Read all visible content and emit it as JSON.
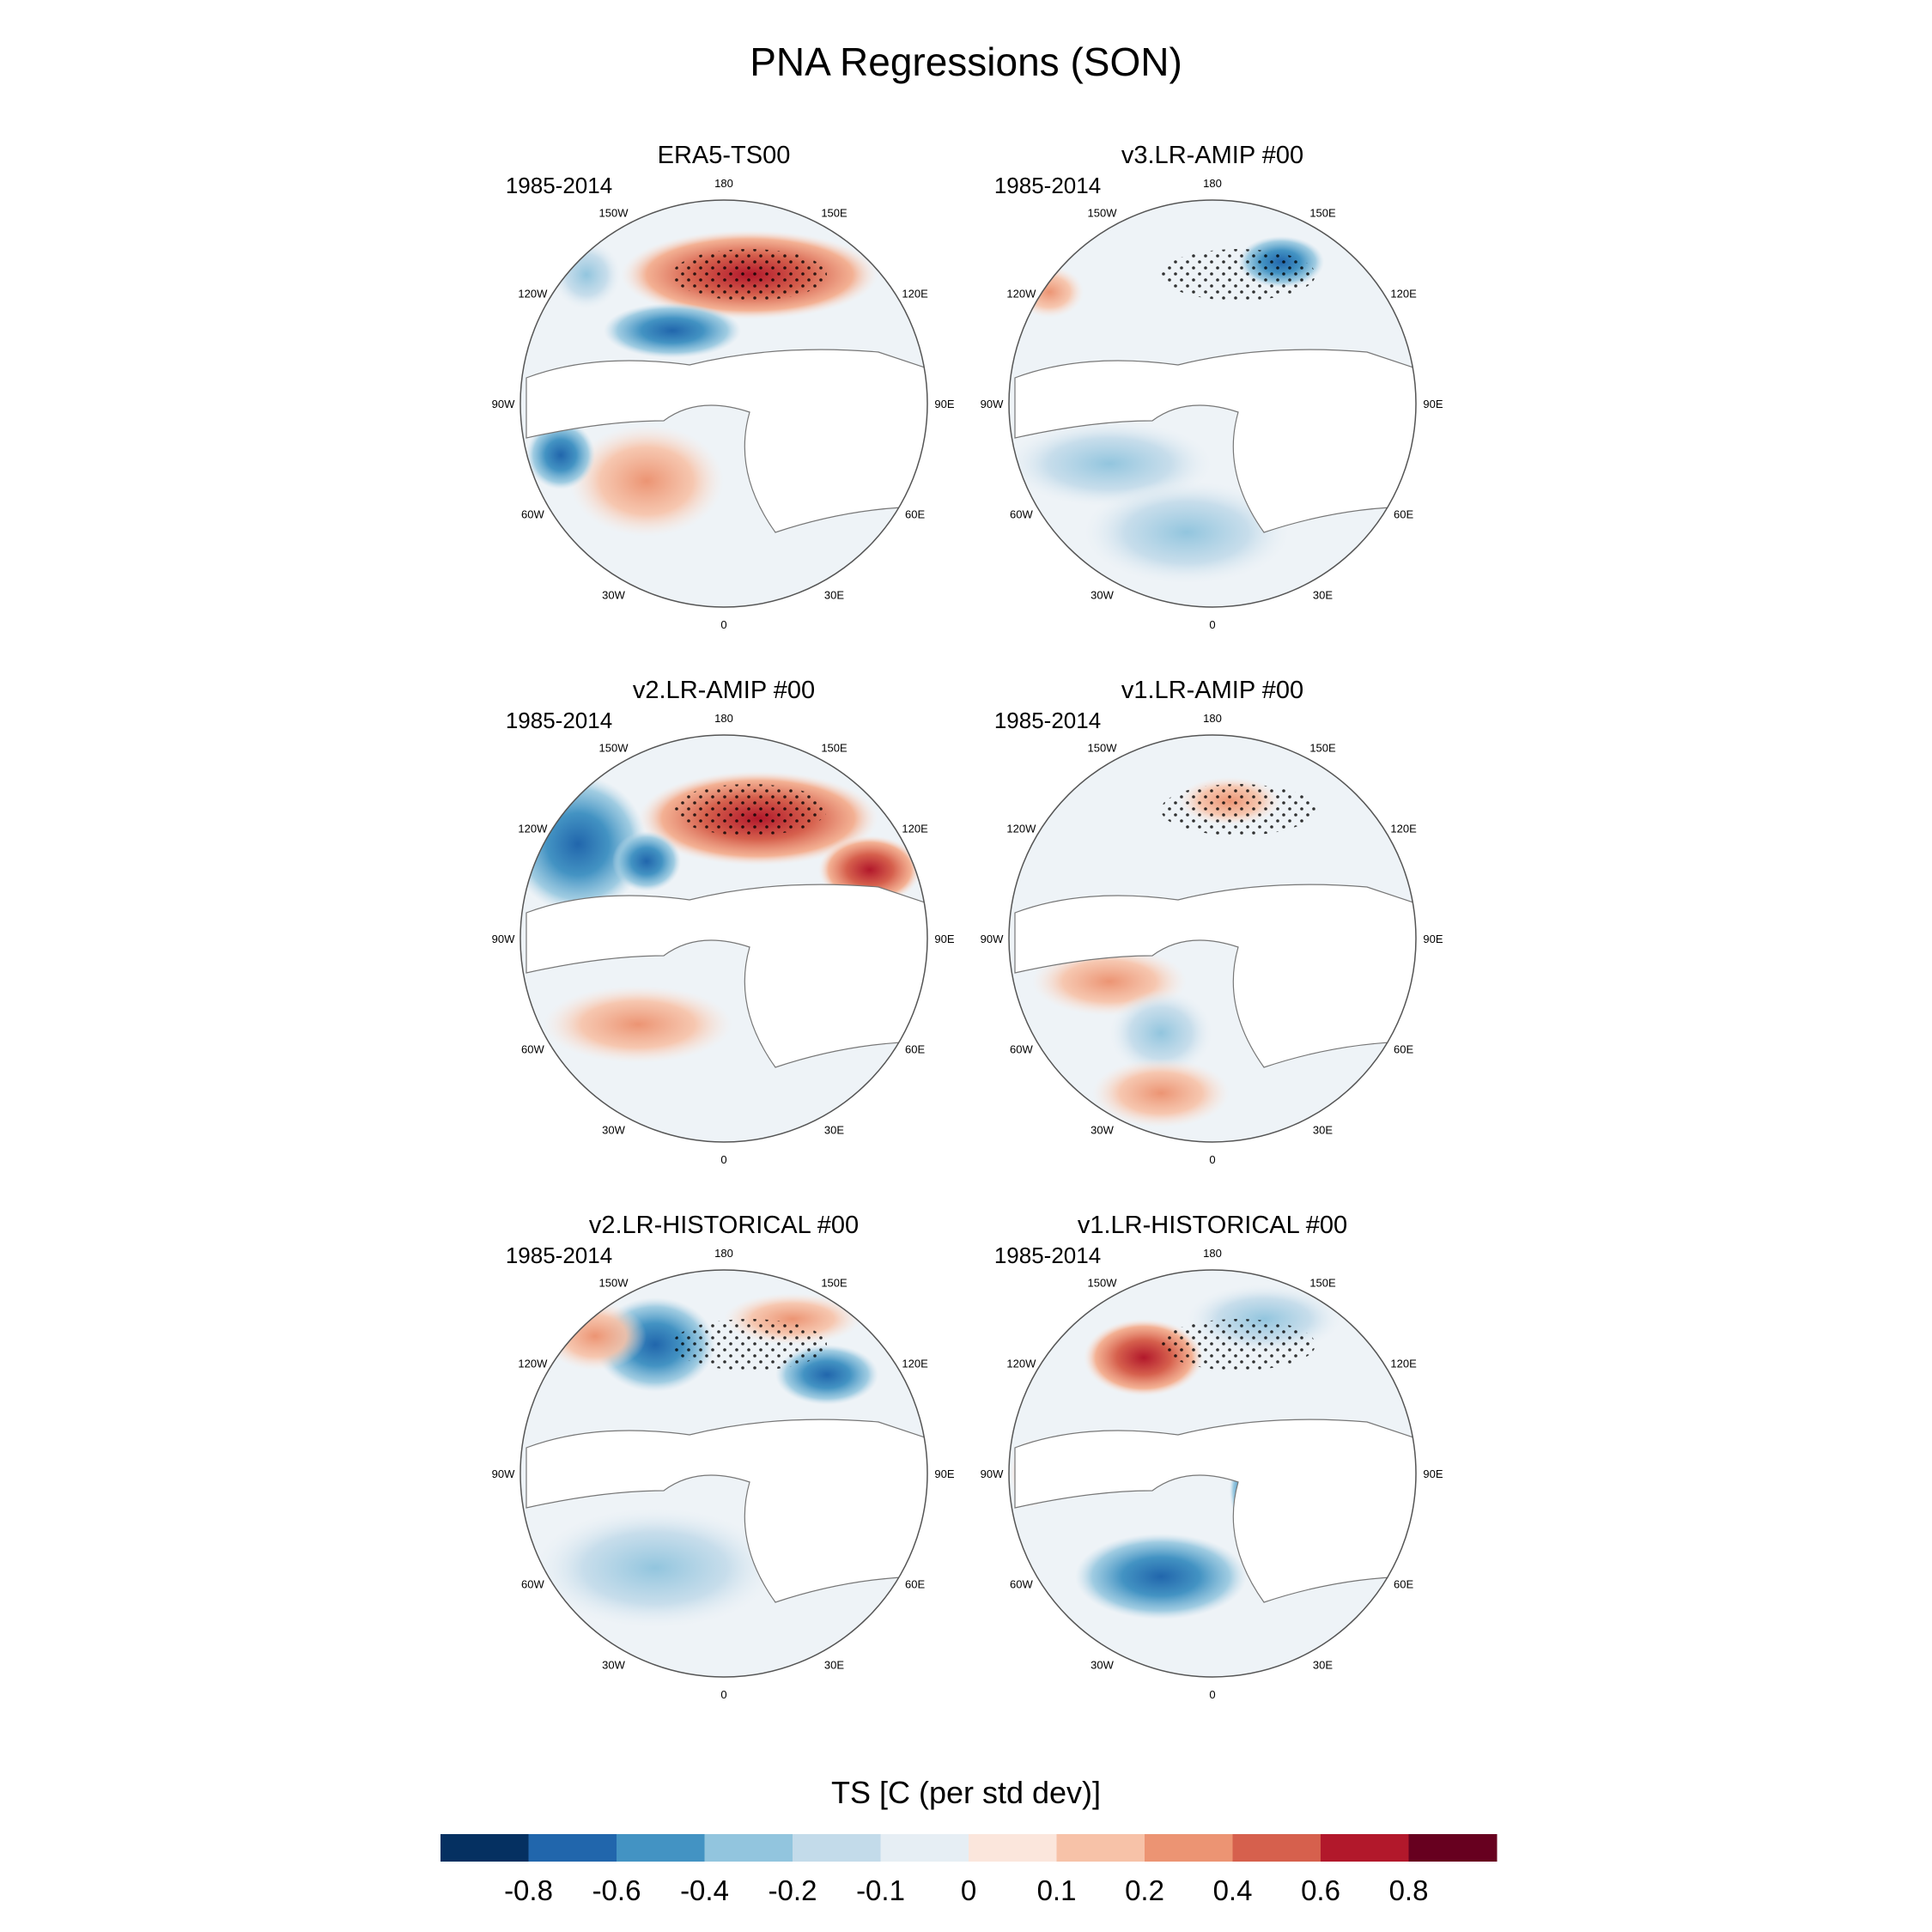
{
  "chart_data": {
    "type": "polar-map-panels",
    "title": "PNA Regressions (SON)",
    "variable_label": "TS [C (per std dev)]",
    "period": "1985-2014",
    "longitude_labels": [
      "180",
      "150E",
      "120E",
      "90E",
      "60E",
      "30E",
      "0",
      "30W",
      "60W",
      "90W",
      "120W",
      "150W"
    ],
    "panels": [
      {
        "title": "ERA5-TS00",
        "period": "1985-2014"
      },
      {
        "title": "v3.LR-AMIP  #00",
        "period": "1985-2014"
      },
      {
        "title": "v2.LR-AMIP  #00",
        "period": "1985-2014"
      },
      {
        "title": "v1.LR-AMIP  #00",
        "period": "1985-2014"
      },
      {
        "title": "v2.LR-HISTORICAL  #00",
        "period": "1985-2014"
      },
      {
        "title": "v1.LR-HISTORICAL  #00",
        "period": "1985-2014"
      }
    ],
    "colorbar": {
      "colors": [
        "#053061",
        "#2166ac",
        "#4393c3",
        "#92c5de",
        "#c3dbea",
        "#e6eef4",
        "#fbe6dc",
        "#f7c2a8",
        "#ec9473",
        "#d6604d",
        "#b2182b",
        "#67001f"
      ],
      "labels": [
        "-0.8",
        "-0.6",
        "-0.4",
        "-0.2",
        "-0.1",
        "0",
        "0.1",
        "0.2",
        "0.4",
        "0.6",
        "0.8"
      ]
    }
  }
}
